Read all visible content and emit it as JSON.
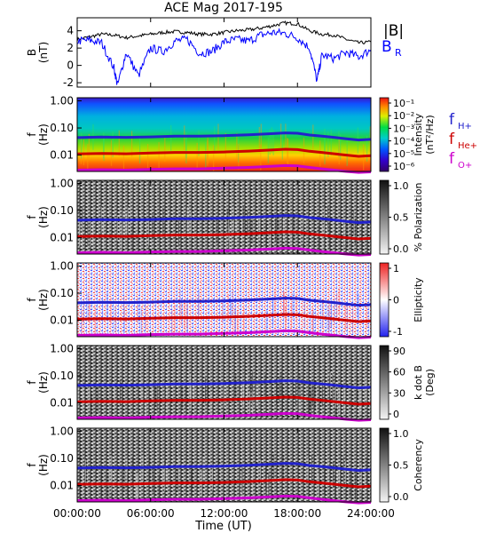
{
  "chart_data": {
    "type": "line",
    "title": "ACE Mag 2017-195",
    "xlabel": "Time (UT)",
    "xticks": [
      "00:00:00",
      "06:00:00",
      "12:00:00",
      "18:00:00",
      "24:00:00"
    ],
    "xlim": [
      0,
      24
    ],
    "panels": [
      {
        "id": "B",
        "ylabel": "B",
        "yunit": "(nT)",
        "ylim": [
          -2.5,
          5.5
        ],
        "yticks": [
          "4",
          "2",
          "0",
          "-2"
        ],
        "series": [
          {
            "name": "|B|",
            "color": "#000000",
            "x": [
              0,
              1,
              2,
              3,
              4,
              5,
              6,
              7,
              8,
              9,
              10,
              11,
              12,
              13,
              14,
              15,
              16,
              17,
              18,
              19,
              20,
              21,
              22,
              23,
              24
            ],
            "y": [
              3.0,
              3.3,
              3.6,
              3.5,
              3.2,
              3.4,
              3.6,
              3.8,
              3.9,
              3.8,
              3.6,
              3.6,
              3.8,
              4.0,
              4.1,
              4.3,
              4.6,
              4.9,
              4.8,
              4.0,
              3.6,
              3.5,
              3.0,
              2.6,
              2.7
            ]
          },
          {
            "name": "B",
            "subscript": "R",
            "color": "#0000ff",
            "x": [
              0,
              1,
              2,
              3,
              3.3,
              4,
              5,
              6,
              7,
              8,
              9,
              10,
              11,
              12,
              13,
              14,
              15,
              16,
              17,
              18,
              19,
              19.6,
              20,
              21,
              22,
              23,
              24
            ],
            "y": [
              2.8,
              2.9,
              2.6,
              -0.3,
              -2.3,
              1.5,
              -1.2,
              2.0,
              1.6,
              2.8,
              3.0,
              1.4,
              1.6,
              2.7,
              3.0,
              2.8,
              3.5,
              3.8,
              3.7,
              3.2,
              2.0,
              -1.8,
              1.2,
              0.8,
              1.5,
              1.0,
              1.8
            ]
          }
        ]
      },
      {
        "id": "intensity",
        "ylabel": "f",
        "yunit": "(Hz)",
        "yscale": "log",
        "ylim": [
          0.0025,
          1.3
        ],
        "yticks": [
          "1.00",
          "0.10",
          "0.01"
        ],
        "background": "spectrogram",
        "colorbar": {
          "label": "Intensity",
          "unit": "(nT²/Hz)",
          "scale": "rainbow",
          "ticks": [
            "10⁻¹",
            "10⁻²",
            "10⁻³",
            "10⁻⁴",
            "10⁻⁵",
            "10⁻⁶"
          ]
        },
        "legend": [
          {
            "label": "f",
            "subscript": "H+",
            "color": "#2222cc"
          },
          {
            "label": "f",
            "subscript": "He+",
            "color": "#cc0000"
          },
          {
            "label": "f",
            "subscript": "O+",
            "color": "#cc00cc"
          }
        ]
      },
      {
        "id": "polarization",
        "ylabel": "f",
        "yunit": "(Hz)",
        "yscale": "log",
        "ylim": [
          0.0025,
          1.3
        ],
        "yticks": [
          "1.00",
          "0.10",
          "0.01"
        ],
        "background": "spectrogram",
        "colorbar": {
          "label": "% Polarization",
          "scale": "gray",
          "ticks": [
            "1.0",
            "0.5",
            "0.0"
          ]
        }
      },
      {
        "id": "ellipticity",
        "ylabel": "f",
        "yunit": "(Hz)",
        "yscale": "log",
        "ylim": [
          0.0025,
          1.3
        ],
        "yticks": [
          "1.00",
          "0.10",
          "0.01"
        ],
        "background": "spectrogram",
        "colorbar": {
          "label": "Ellipticity",
          "scale": "bluewhitered",
          "ticks": [
            "1",
            "0",
            "-1"
          ]
        }
      },
      {
        "id": "kdotb",
        "ylabel": "f",
        "yunit": "(Hz)",
        "yscale": "log",
        "ylim": [
          0.0025,
          1.3
        ],
        "yticks": [
          "1.00",
          "0.10",
          "0.01"
        ],
        "background": "spectrogram",
        "colorbar": {
          "label": "k dot B",
          "unit": "(Deg)",
          "scale": "gray",
          "ticks": [
            "90",
            "60",
            "30",
            "0"
          ]
        }
      },
      {
        "id": "coherency",
        "ylabel": "f",
        "yunit": "(Hz)",
        "yscale": "log",
        "ylim": [
          0.0025,
          1.3
        ],
        "yticks": [
          "1.00",
          "0.10",
          "0.01"
        ],
        "background": "spectrogram",
        "colorbar": {
          "label": "Coherency",
          "scale": "gray",
          "ticks": [
            "1.0",
            "0.5",
            "0.0"
          ]
        }
      }
    ],
    "gyrofrequency_series": [
      {
        "name": "f",
        "subscript": "H+",
        "color": "#2222cc",
        "x": [
          0,
          2,
          4,
          6,
          8,
          10,
          12,
          14,
          16,
          17,
          18,
          19,
          20,
          21,
          22,
          23,
          24
        ],
        "y": [
          0.044,
          0.046,
          0.045,
          0.047,
          0.05,
          0.05,
          0.052,
          0.056,
          0.062,
          0.066,
          0.064,
          0.055,
          0.05,
          0.045,
          0.04,
          0.036,
          0.038
        ]
      },
      {
        "name": "f",
        "subscript": "He+",
        "color": "#cc0000",
        "x": [
          0,
          2,
          4,
          6,
          8,
          10,
          12,
          14,
          16,
          17,
          18,
          19,
          20,
          21,
          22,
          23,
          24
        ],
        "y": [
          0.011,
          0.0115,
          0.0112,
          0.012,
          0.0125,
          0.0125,
          0.013,
          0.014,
          0.0155,
          0.0165,
          0.016,
          0.0138,
          0.0125,
          0.0112,
          0.01,
          0.009,
          0.0095
        ]
      },
      {
        "name": "f",
        "subscript": "O+",
        "color": "#cc00cc",
        "x": [
          0,
          2,
          4,
          6,
          8,
          10,
          12,
          14,
          16,
          17,
          18,
          19,
          20,
          21,
          22,
          23,
          24
        ],
        "y": [
          0.0028,
          0.0029,
          0.0028,
          0.003,
          0.0031,
          0.0031,
          0.0033,
          0.0035,
          0.0039,
          0.0041,
          0.004,
          0.0035,
          0.0031,
          0.0028,
          0.0025,
          0.0023,
          0.0024
        ]
      }
    ]
  }
}
